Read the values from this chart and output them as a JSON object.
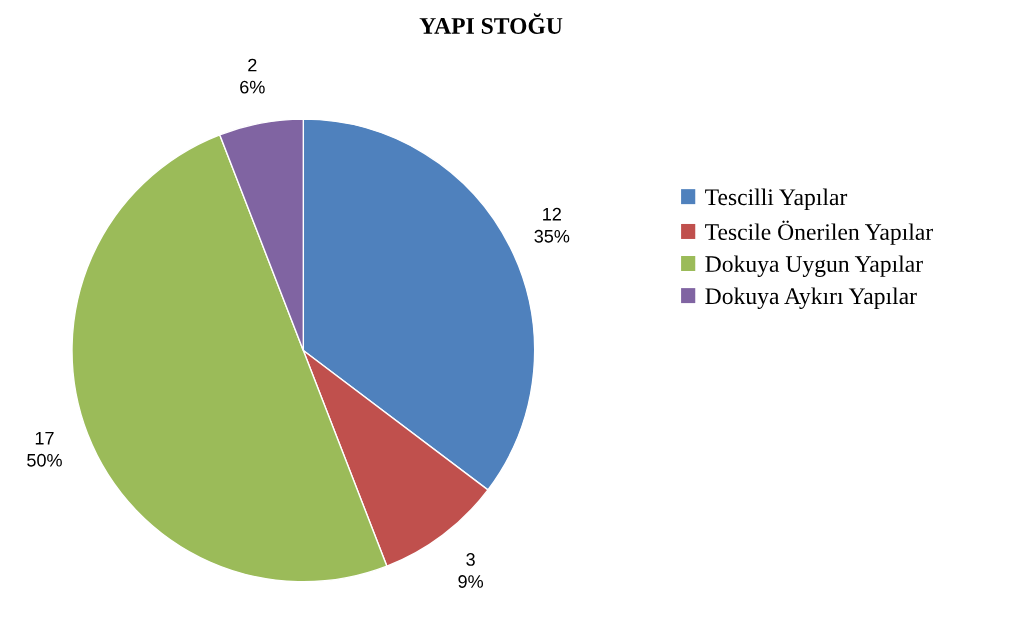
{
  "chart_data": {
    "type": "pie",
    "title": "YAPI STOĞU",
    "categories": [
      "Tescilli Yapılar",
      "Tescile Önerilen Yapılar",
      "Dokuya Uygun Yapılar",
      "Dokuya Aykırı Yapılar"
    ],
    "values": [
      12,
      3,
      17,
      2
    ],
    "value_labels": [
      "12\n35%",
      "3\n9%",
      "17\n50%",
      "2\n6%"
    ],
    "colors": [
      "#4f81bd",
      "#c0504d",
      "#9bbb59",
      "#8064a2"
    ],
    "legend": "right"
  }
}
